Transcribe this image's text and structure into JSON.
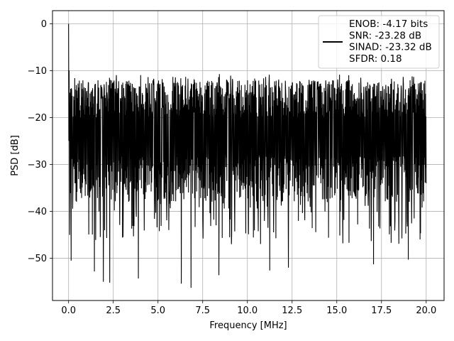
{
  "chart_data": {
    "type": "line",
    "title": "",
    "xlabel": "Frequency [MHz]",
    "ylabel": "PSD [dB]",
    "xlim": [
      -0.9,
      21.0
    ],
    "ylim": [
      -59.0,
      2.8
    ],
    "xticks": [
      0.0,
      2.5,
      5.0,
      7.5,
      10.0,
      12.5,
      15.0,
      17.5,
      20.0
    ],
    "xtick_labels": [
      "0.0",
      "2.5",
      "5.0",
      "7.5",
      "10.0",
      "12.5",
      "15.0",
      "17.5",
      "20.0"
    ],
    "yticks": [
      0,
      -10,
      -20,
      -30,
      -40,
      -50
    ],
    "ytick_labels": [
      "0",
      "−10",
      "−20",
      "−30",
      "−40",
      "−50"
    ],
    "grid": true,
    "legend_position": "top-right",
    "series_color": "#000000",
    "series": [
      {
        "name": "ENOB: -4.17 bits\nSNR: -23.28 dB\nSINAD: -23.32 dB\nSFDR: 0.18",
        "legend_lines": [
          "ENOB: -4.17 bits",
          "SNR: -23.28 dB",
          "SINAD: -23.32 dB",
          "SFDR: 0.18"
        ],
        "x_range": [
          0.0,
          20.0
        ],
        "peak": {
          "x": 0.0,
          "y": 0.0
        },
        "noise_floor_band": [
          -38.0,
          -12.0
        ],
        "typical_level": -25.0,
        "upper_envelope": [
          -12.5,
          -10.5
        ],
        "deepest_nulls": [
          {
            "x": 0.15,
            "y": -50.5
          },
          {
            "x": 1.45,
            "y": -52.8
          },
          {
            "x": 1.95,
            "y": -55.0
          },
          {
            "x": 2.3,
            "y": -55.2
          },
          {
            "x": 3.9,
            "y": -54.3
          },
          {
            "x": 6.3,
            "y": -55.4
          },
          {
            "x": 6.85,
            "y": -56.3
          },
          {
            "x": 8.4,
            "y": -53.6
          },
          {
            "x": 11.25,
            "y": -52.6
          },
          {
            "x": 12.3,
            "y": -52.0
          },
          {
            "x": 17.05,
            "y": -51.3
          },
          {
            "x": 19.0,
            "y": -50.3
          }
        ]
      }
    ]
  }
}
